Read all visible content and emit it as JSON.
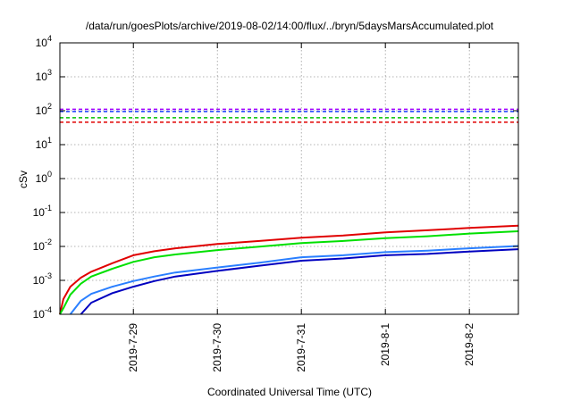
{
  "chart_data": {
    "type": "line",
    "title": "/data/run/goesPlots/archive/2019-08-02/14:00/flux/../bryn/5daysMarsAccumulated.plot",
    "xlabel": "Coordinated Universal Time (UTC)",
    "ylabel": "cSv",
    "y_scale": "log",
    "ylim": [
      0.0001,
      10000
    ],
    "y_ticks": [
      {
        "value": 0.0001,
        "base": "10",
        "exp": "-4"
      },
      {
        "value": 0.001,
        "base": "10",
        "exp": "-3"
      },
      {
        "value": 0.01,
        "base": "10",
        "exp": "-2"
      },
      {
        "value": 0.1,
        "base": "10",
        "exp": "-1"
      },
      {
        "value": 1,
        "base": "10",
        "exp": "0"
      },
      {
        "value": 10,
        "base": "10",
        "exp": "1"
      },
      {
        "value": 100,
        "base": "10",
        "exp": "2"
      },
      {
        "value": 1000,
        "base": "10",
        "exp": "3"
      },
      {
        "value": 10000,
        "base": "10",
        "exp": "4"
      }
    ],
    "xlim": [
      "2019-07-28T03:00",
      "2019-08-02T14:00"
    ],
    "x_ticks": [
      {
        "value": "2019-07-29T00:00",
        "label": "2019-7-29"
      },
      {
        "value": "2019-07-30T00:00",
        "label": "2019-7-30"
      },
      {
        "value": "2019-07-31T00:00",
        "label": "2019-7-31"
      },
      {
        "value": "2019-08-01T00:00",
        "label": "2019-8-1"
      },
      {
        "value": "2019-08-02T00:00",
        "label": "2019-8-2"
      }
    ],
    "grid": true,
    "series": [
      {
        "color": "#e00000",
        "style": "solid",
        "points": [
          [
            "2019-07-28T03:00",
            0.0001
          ],
          [
            "2019-07-28T04:00",
            0.00028
          ],
          [
            "2019-07-28T06:00",
            0.00065
          ],
          [
            "2019-07-28T09:00",
            0.0012
          ],
          [
            "2019-07-28T12:00",
            0.0018
          ],
          [
            "2019-07-28T18:00",
            0.0032
          ],
          [
            "2019-07-29T00:00",
            0.0055
          ],
          [
            "2019-07-29T06:00",
            0.0072
          ],
          [
            "2019-07-29T12:00",
            0.0088
          ],
          [
            "2019-07-30T00:00",
            0.0118
          ],
          [
            "2019-07-30T12:00",
            0.0145
          ],
          [
            "2019-07-31T00:00",
            0.018
          ],
          [
            "2019-07-31T12:00",
            0.021
          ],
          [
            "2019-08-01T00:00",
            0.026
          ],
          [
            "2019-08-01T12:00",
            0.03
          ],
          [
            "2019-08-02T00:00",
            0.035
          ],
          [
            "2019-08-02T14:00",
            0.041
          ]
        ]
      },
      {
        "color": "#00e000",
        "style": "solid",
        "points": [
          [
            "2019-07-28T03:00",
            0.0001
          ],
          [
            "2019-07-28T04:00",
            0.00015
          ],
          [
            "2019-07-28T06:00",
            0.00038
          ],
          [
            "2019-07-28T09:00",
            0.0008
          ],
          [
            "2019-07-28T12:00",
            0.0013
          ],
          [
            "2019-07-28T18:00",
            0.0022
          ],
          [
            "2019-07-29T00:00",
            0.0035
          ],
          [
            "2019-07-29T06:00",
            0.0048
          ],
          [
            "2019-07-29T12:00",
            0.0058
          ],
          [
            "2019-07-30T00:00",
            0.0078
          ],
          [
            "2019-07-30T12:00",
            0.0098
          ],
          [
            "2019-07-31T00:00",
            0.0125
          ],
          [
            "2019-07-31T12:00",
            0.0145
          ],
          [
            "2019-08-01T00:00",
            0.0175
          ],
          [
            "2019-08-01T12:00",
            0.02
          ],
          [
            "2019-08-02T00:00",
            0.024
          ],
          [
            "2019-08-02T14:00",
            0.028
          ]
        ]
      },
      {
        "color": "#2a7fff",
        "style": "solid",
        "points": [
          [
            "2019-07-28T06:00",
            0.0001
          ],
          [
            "2019-07-28T09:00",
            0.00025
          ],
          [
            "2019-07-28T12:00",
            0.0004
          ],
          [
            "2019-07-28T18:00",
            0.00065
          ],
          [
            "2019-07-29T00:00",
            0.00095
          ],
          [
            "2019-07-29T06:00",
            0.0013
          ],
          [
            "2019-07-29T12:00",
            0.0017
          ],
          [
            "2019-07-30T00:00",
            0.0024
          ],
          [
            "2019-07-30T12:00",
            0.0033
          ],
          [
            "2019-07-31T00:00",
            0.0048
          ],
          [
            "2019-07-31T12:00",
            0.0055
          ],
          [
            "2019-08-01T00:00",
            0.0068
          ],
          [
            "2019-08-01T12:00",
            0.0075
          ],
          [
            "2019-08-02T00:00",
            0.0088
          ],
          [
            "2019-08-02T14:00",
            0.0103
          ]
        ]
      },
      {
        "color": "#0000c0",
        "style": "solid",
        "points": [
          [
            "2019-07-28T09:00",
            0.0001
          ],
          [
            "2019-07-28T12:00",
            0.00022
          ],
          [
            "2019-07-28T18:00",
            0.00042
          ],
          [
            "2019-07-29T00:00",
            0.00065
          ],
          [
            "2019-07-29T06:00",
            0.00095
          ],
          [
            "2019-07-29T12:00",
            0.0013
          ],
          [
            "2019-07-30T00:00",
            0.0019
          ],
          [
            "2019-07-30T12:00",
            0.0027
          ],
          [
            "2019-07-31T00:00",
            0.0038
          ],
          [
            "2019-07-31T12:00",
            0.0044
          ],
          [
            "2019-08-01T00:00",
            0.0055
          ],
          [
            "2019-08-01T12:00",
            0.006
          ],
          [
            "2019-08-02T00:00",
            0.0071
          ],
          [
            "2019-08-02T14:00",
            0.0083
          ]
        ]
      }
    ],
    "reference_lines": [
      {
        "value": 110,
        "color": "#a000ff",
        "style": "dashed"
      },
      {
        "value": 95,
        "color": "#1a3cff",
        "style": "dashed"
      },
      {
        "value": 62,
        "color": "#00c000",
        "style": "dashed"
      },
      {
        "value": 46,
        "color": "#e00000",
        "style": "dashed"
      }
    ]
  }
}
